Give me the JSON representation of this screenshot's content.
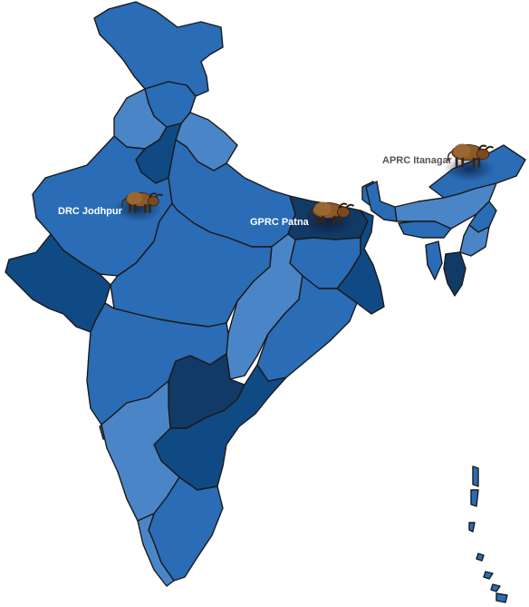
{
  "map": {
    "palette": {
      "light": "#4a86c7",
      "medium": "#2a6cb5",
      "dark": "#0f4a84",
      "darkest": "#123a66",
      "outline": "#1a1a1a",
      "background": "#ffffff"
    },
    "centers": [
      {
        "label": "DRC Jodhpur",
        "label_color": "#ffffff",
        "icon": "buffalo-icon"
      },
      {
        "label": "GPRC Patna",
        "label_color": "#ffffff",
        "icon": "buffalo-icon"
      },
      {
        "label": "APRC Itanagar",
        "label_color": "#555555",
        "icon": "buffalo-icon"
      }
    ]
  }
}
